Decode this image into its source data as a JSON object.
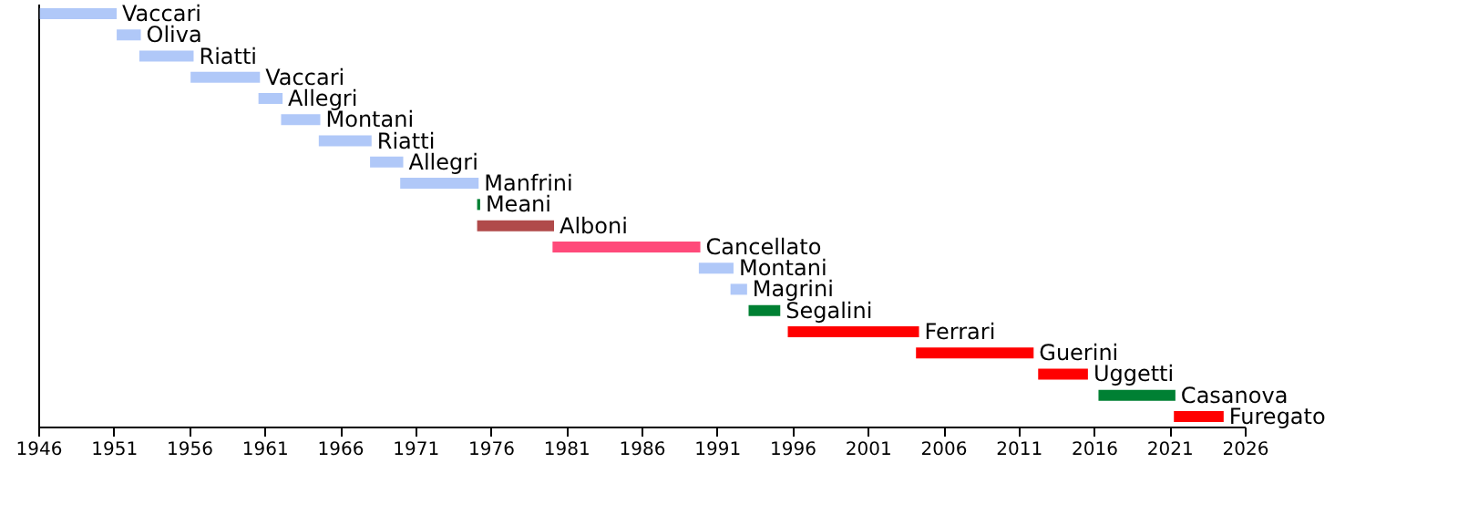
{
  "chart_data": {
    "type": "bar",
    "orientation": "horizontal",
    "categories": [
      "Vaccari",
      "Oliva",
      "Riatti",
      "Vaccari",
      "Allegri",
      "Montani",
      "Riatti",
      "Allegri",
      "Manfrini",
      "Meani",
      "Alboni",
      "Cancellato",
      "Montani",
      "Magrini",
      "Segalini",
      "Ferrari",
      "Guerini",
      "Uggetti",
      "Casanova",
      "Furegato"
    ],
    "base": [
      1946.1,
      1951.2,
      1952.7,
      1956.1,
      1960.6,
      1962.1,
      1964.6,
      1968.0,
      1970.0,
      1975.1,
      1975.1,
      1980.1,
      1989.8,
      1991.9,
      1993.1,
      1995.7,
      2004.2,
      2012.3,
      2016.3,
      2021.3
    ],
    "values": [
      5.1,
      1.6,
      3.6,
      4.6,
      1.6,
      2.6,
      3.5,
      2.2,
      5.2,
      0.2,
      5.1,
      9.8,
      2.3,
      1.1,
      2.1,
      8.7,
      7.8,
      3.3,
      5.1,
      3.3
    ],
    "colors": [
      "#b0c8f8",
      "#b0c8f8",
      "#b0c8f8",
      "#b0c8f8",
      "#b0c8f8",
      "#b0c8f8",
      "#b0c8f8",
      "#b0c8f8",
      "#b0c8f8",
      "#008033",
      "#b04a4a",
      "#ff4a7a",
      "#b0c8f8",
      "#b0c8f8",
      "#008033",
      "#ff0000",
      "#ff0000",
      "#ff0000",
      "#008033",
      "#ff0000"
    ],
    "xlim": [
      1946,
      2026
    ],
    "xticks": [
      1946,
      1951,
      1956,
      1961,
      1966,
      1971,
      1976,
      1981,
      1986,
      1991,
      1996,
      2001,
      2006,
      2011,
      2016,
      2021,
      2026
    ],
    "grid": false,
    "tick_labels": "x"
  }
}
